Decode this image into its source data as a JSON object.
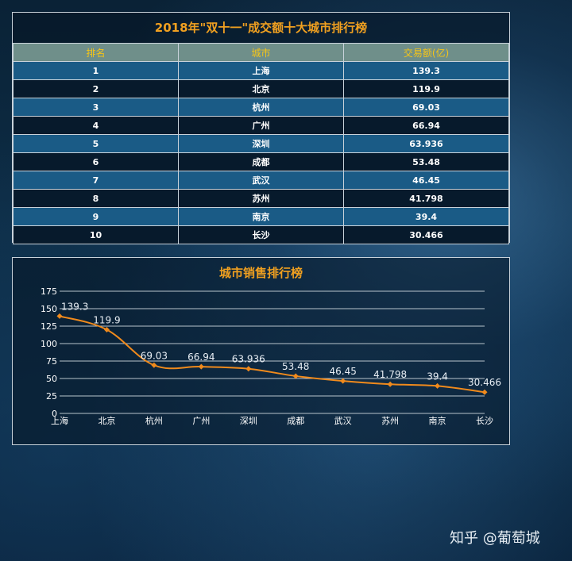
{
  "table": {
    "title": "2018年\"双十一\"成交额十大城市排行榜",
    "headers": [
      "排名",
      "城市",
      "交易额(亿)"
    ],
    "rows": [
      {
        "rank": "1",
        "city": "上海",
        "amount": "139.3"
      },
      {
        "rank": "2",
        "city": "北京",
        "amount": "119.9"
      },
      {
        "rank": "3",
        "city": "杭州",
        "amount": "69.03"
      },
      {
        "rank": "4",
        "city": "广州",
        "amount": "66.94"
      },
      {
        "rank": "5",
        "city": "深圳",
        "amount": "63.936"
      },
      {
        "rank": "6",
        "city": "成都",
        "amount": "53.48"
      },
      {
        "rank": "7",
        "city": "武汉",
        "amount": "46.45"
      },
      {
        "rank": "8",
        "city": "苏州",
        "amount": "41.798"
      },
      {
        "rank": "9",
        "city": "南京",
        "amount": "39.4"
      },
      {
        "rank": "10",
        "city": "长沙",
        "amount": "30.466"
      }
    ]
  },
  "chart_data": {
    "type": "line",
    "title": "城市销售排行榜",
    "categories": [
      "上海",
      "北京",
      "杭州",
      "广州",
      "深圳",
      "成都",
      "武汉",
      "苏州",
      "南京",
      "长沙"
    ],
    "values": [
      139.3,
      119.9,
      69.03,
      66.94,
      63.936,
      53.48,
      46.45,
      41.798,
      39.4,
      30.466
    ],
    "value_labels": [
      "139.3",
      "119.9",
      "69.03",
      "66.94",
      "63.936",
      "53.48",
      "46.45",
      "41.798",
      "39.4",
      "30.466"
    ],
    "ylim": [
      0,
      175
    ],
    "yticks": [
      0,
      25,
      50,
      75,
      100,
      125,
      150,
      175
    ],
    "xlabel": "",
    "ylabel": "",
    "grid": true,
    "line_color": "#f08a1c",
    "smooth": true
  },
  "colors": {
    "title": "#f0a020",
    "header_bg": "#6f8f8a",
    "header_text": "#f5c518",
    "row_odd": "#1a5b86",
    "row_even": "#071a2c"
  },
  "watermark": "知乎 @葡萄城"
}
